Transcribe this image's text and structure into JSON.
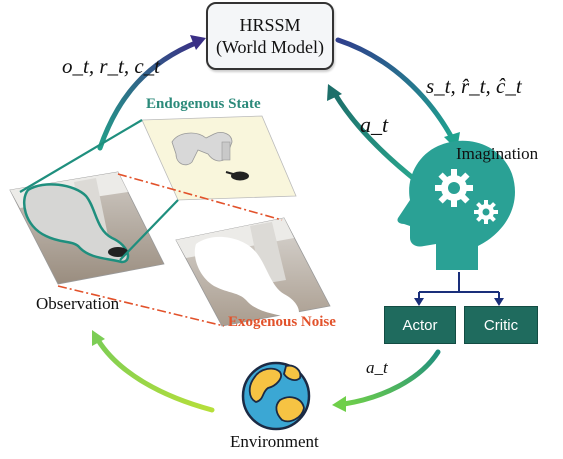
{
  "world_model": {
    "line1": "HRSSM",
    "line2": "(World Model)"
  },
  "observation_tuple": "o_t, r_t, c_t",
  "imagined_tuple": "s_t, r̂_t, ĉ_t",
  "action_upper": "a_t",
  "action_lower": "a_t",
  "imagination_label": "Imagination",
  "actor_label": "Actor",
  "critic_label": "Critic",
  "environment_label": "Environment",
  "observation_label": "Observation",
  "endogenous_label": "Endogenous State",
  "exogenous_label": "Exogenous Noise",
  "colors": {
    "teal": "#1f8f7e",
    "dark_teal": "#1f6b5e",
    "navy": "#2b3f8f",
    "arrow_green": "#9bd24a",
    "noise_red": "#e2522b",
    "head_teal": "#2aa195"
  },
  "icons": [
    "brain-gears-icon",
    "globe-icon",
    "robot-arm-image"
  ]
}
